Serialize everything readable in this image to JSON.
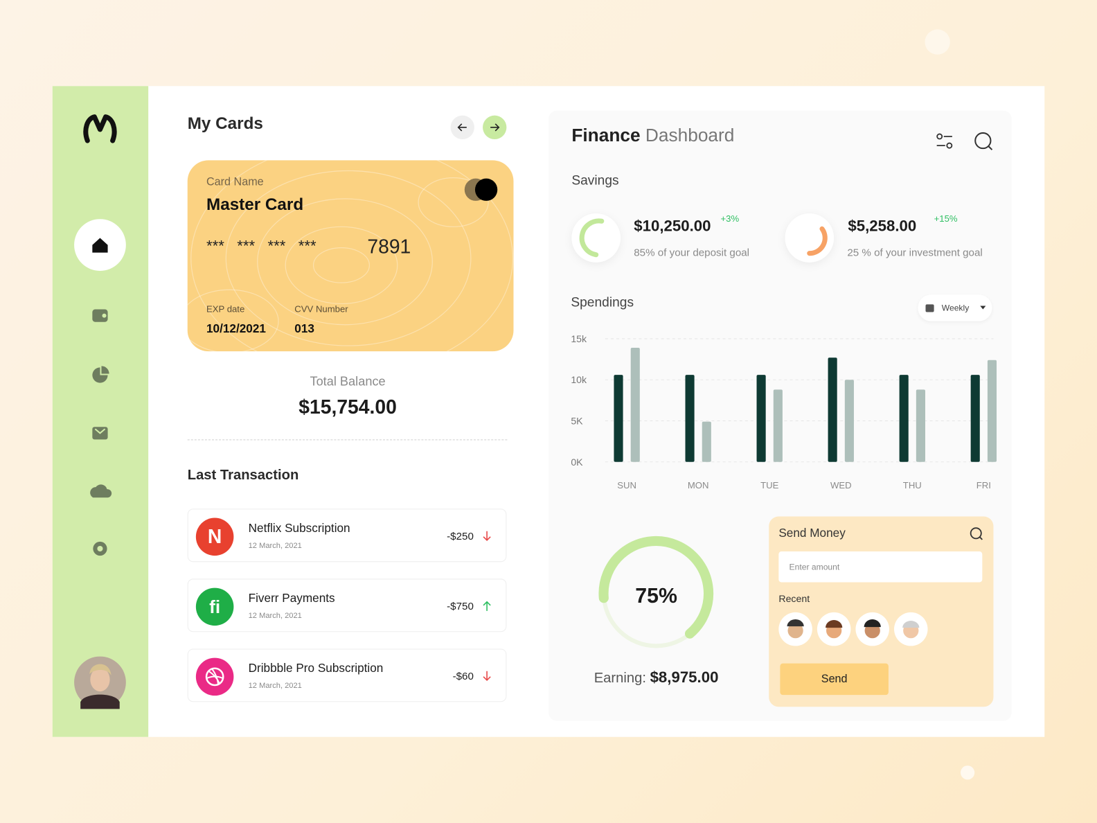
{
  "my_cards": {
    "title": "My Cards",
    "card": {
      "name_label": "Card Name",
      "name": "Master Card",
      "masked": "*** *** *** ***",
      "last_digits": "7891",
      "exp_label": "EXP date",
      "exp": "10/12/2021",
      "cvv_label": "CVV Number",
      "cvv": "013"
    },
    "total_balance_label": "Total Balance",
    "total_balance": "$15,754.00"
  },
  "last_transaction": {
    "title": "Last Transaction",
    "items": [
      {
        "icon": "N",
        "name": "Netflix Subscription",
        "date": "12 March, 2021",
        "amount": "-$250"
      },
      {
        "icon": "fi",
        "name": "Fiverr Payments",
        "date": "12 March, 2021",
        "amount": "-$750"
      },
      {
        "name": "Dribbble Pro Subscription",
        "date": "12 March, 2021",
        "amount": "-$60"
      }
    ]
  },
  "dashboard": {
    "title_bold": "Finance",
    "title_light": "Dashboard",
    "savings": {
      "title": "Savings",
      "items": [
        {
          "amount": "$10,250.00",
          "change": "+3%",
          "note": "85% of your deposit goal"
        },
        {
          "amount": "$5,258.00",
          "change": "+15%",
          "note": "25 % of your investment goal"
        }
      ]
    },
    "spendings": {
      "title": "Spendings",
      "period": "Weekly"
    },
    "earning": {
      "percent": "75%",
      "label": "Earning:",
      "amount": "$8,975.00"
    },
    "send_money": {
      "title": "Send Money",
      "placeholder": "Enter amount",
      "recent": "Recent",
      "button": "Send"
    }
  },
  "chart_data": {
    "type": "bar",
    "categories": [
      "SUN",
      "MON",
      "TUE",
      "WED",
      "THU",
      "FRI"
    ],
    "series": [
      {
        "color": "#0e3a33",
        "values": [
          10600,
          10600,
          10600,
          12700,
          10600,
          10600
        ]
      },
      {
        "color": "#adbfba",
        "values": [
          13900,
          4900,
          8800,
          10000,
          8800,
          12400
        ]
      }
    ],
    "ylim": [
      0,
      15000
    ],
    "yticks": [
      {
        "value": 0,
        "label": "0K"
      },
      {
        "value": 5000,
        "label": "5K"
      },
      {
        "value": 10000,
        "label": "10k"
      },
      {
        "value": 15000,
        "label": "15k"
      }
    ],
    "grid": true
  }
}
